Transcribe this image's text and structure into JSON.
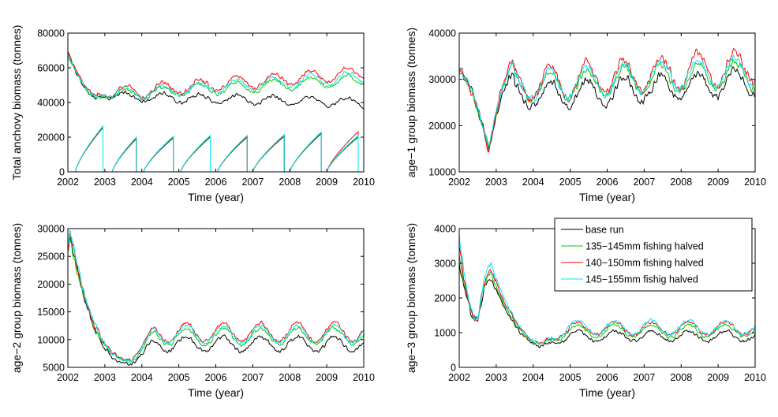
{
  "chart_data": [
    {
      "type": "line",
      "title": "",
      "xlabel": "Time (year)",
      "ylabel": "Total anchovy biomass (tonnes)",
      "xlim": [
        2002,
        2010
      ],
      "ylim": [
        0,
        80000
      ],
      "xticks": [
        "2002",
        "2003",
        "2004",
        "2005",
        "2006",
        "2007",
        "2008",
        "2009",
        "2010"
      ],
      "yticks": [
        "0",
        "20000",
        "40000",
        "60000",
        "80000"
      ],
      "series": [
        {
          "name": "base run",
          "color": "#000000",
          "start": 68000,
          "trough": 42000,
          "troughX": 2002.8,
          "trend": -500,
          "amp": 2600,
          "noise": 1500,
          "recovery": 0.6
        },
        {
          "name": "135−145mm fishing halved",
          "color": "#00cc00",
          "start": 68000,
          "trough": 42500,
          "troughX": 2002.8,
          "trend": 1300,
          "amp": 3200,
          "noise": 1500,
          "recovery": 0.6
        },
        {
          "name": "140−150mm fishing halved",
          "color": "#ff0000",
          "start": 69000,
          "trough": 43500,
          "troughX": 2002.8,
          "trend": 1750,
          "amp": 3600,
          "noise": 1700,
          "recovery": 0.6
        },
        {
          "name": "145−155mm fishig halved",
          "color": "#00e5ff",
          "start": 68000,
          "trough": 43000,
          "troughX": 2002.8,
          "trend": 1500,
          "amp": 3300,
          "noise": 1600,
          "recovery": 0.6
        }
      ],
      "sawtooth": {
        "start": [
          2002.2,
          2003.2,
          2004.05,
          2005.05,
          2006.05,
          2007.0,
          2008.0,
          2009.0
        ],
        "end": [
          2002.95,
          2003.85,
          2004.85,
          2005.85,
          2006.85,
          2007.85,
          2008.85,
          2009.85
        ],
        "peak": [
          26000,
          19500,
          20000,
          20500,
          20500,
          21000,
          22500,
          20500
        ],
        "last_peak_red": 23000
      }
    },
    {
      "type": "line",
      "title": "",
      "xlabel": "Time (year)",
      "ylabel": "age−1 group biomass (tonnes)",
      "xlim": [
        2002,
        2010
      ],
      "ylim": [
        10000,
        40000
      ],
      "xticks": [
        "2002",
        "2003",
        "2004",
        "2005",
        "2006",
        "2007",
        "2008",
        "2009",
        "2010"
      ],
      "yticks": [
        "10000",
        "20000",
        "30000",
        "40000"
      ],
      "series": [
        {
          "name": "base run",
          "color": "#000000",
          "start": 32500,
          "trough": 15000,
          "troughX": 2002.8,
          "trend": 0,
          "amp": 2800,
          "noise": 1300,
          "recovery": 0.5,
          "level": 26500,
          "growth": 500
        },
        {
          "name": "135−145mm fishing halved",
          "color": "#00cc00",
          "start": 32500,
          "trough": 15000,
          "troughX": 2002.8,
          "trend": 0,
          "amp": 3000,
          "noise": 1200,
          "recovery": 0.5,
          "level": 28500,
          "growth": 450
        },
        {
          "name": "140−150mm fishing halved",
          "color": "#ff0000",
          "start": 32500,
          "trough": 14500,
          "troughX": 2002.8,
          "trend": 0,
          "amp": 3600,
          "noise": 1400,
          "recovery": 0.5,
          "level": 29000,
          "growth": 650
        },
        {
          "name": "145−155mm fishig halved",
          "color": "#00e5ff",
          "start": 32500,
          "trough": 15200,
          "troughX": 2002.8,
          "trend": 0,
          "amp": 3300,
          "noise": 1300,
          "recovery": 0.5,
          "level": 28800,
          "growth": 550
        }
      ]
    },
    {
      "type": "line",
      "title": "",
      "xlabel": "Time (year)",
      "ylabel": "age−2 group biomass (tonnes)",
      "xlim": [
        2002,
        2010
      ],
      "ylim": [
        5000,
        30000
      ],
      "xticks": [
        "2002",
        "2003",
        "2004",
        "2005",
        "2006",
        "2007",
        "2008",
        "2009",
        "2010"
      ],
      "yticks": [
        "5000",
        "10000",
        "15000",
        "20000",
        "25000",
        "30000"
      ],
      "series": [
        {
          "name": "base run",
          "color": "#000000",
          "start": 27500,
          "trough": 5600,
          "troughX": 2003.75,
          "trend": 0,
          "amp": 1300,
          "noise": 500,
          "recovery": 0.6,
          "level": 9200
        },
        {
          "name": "135−145mm fishing halved",
          "color": "#00cc00",
          "start": 27000,
          "trough": 6200,
          "troughX": 2003.75,
          "trend": 0,
          "amp": 1500,
          "noise": 500,
          "recovery": 0.6,
          "level": 10600
        },
        {
          "name": "140−150mm fishing halved",
          "color": "#ff0000",
          "start": 28000,
          "trough": 6400,
          "troughX": 2003.75,
          "trend": 0,
          "amp": 1700,
          "noise": 550,
          "recovery": 0.6,
          "level": 11300
        },
        {
          "name": "145−155mm fishig halved",
          "color": "#00e5ff",
          "start": 28500,
          "trough": 6300,
          "troughX": 2003.75,
          "trend": 0,
          "amp": 1600,
          "noise": 550,
          "recovery": 0.6,
          "level": 11000
        }
      ]
    },
    {
      "type": "line",
      "title": "",
      "xlabel": "Time (year)",
      "ylabel": "age−3 group biomass (tonnes)",
      "xlim": [
        2002,
        2010
      ],
      "ylim": [
        0,
        4000
      ],
      "xticks": [
        "2002",
        "2003",
        "2004",
        "2005",
        "2006",
        "2007",
        "2008",
        "2009",
        "2010"
      ],
      "yticks": [
        "0",
        "1000",
        "2000",
        "3000",
        "4000"
      ],
      "legend": {
        "location": "upper-right",
        "entries": [
          "base run",
          "135−145mm fishing halved",
          "140−150mm fishing halved",
          "145−155mm fishig halved"
        ]
      },
      "series": [
        {
          "name": "base run",
          "color": "#000000",
          "start": 3000,
          "trough": 1350,
          "peakVal": 2600,
          "trough2": 620,
          "level": 900,
          "amp": 150,
          "noise": 70
        },
        {
          "name": "135−145mm fishing halved",
          "color": "#00cc00",
          "start": 3200,
          "trough": 1350,
          "peakVal": 2700,
          "trough2": 680,
          "level": 1050,
          "amp": 170,
          "noise": 70
        },
        {
          "name": "140−150mm fishing halved",
          "color": "#ff0000",
          "start": 3400,
          "trough": 1400,
          "peakVal": 2850,
          "trough2": 700,
          "level": 1120,
          "amp": 190,
          "noise": 75
        },
        {
          "name": "145−155mm fishig halved",
          "color": "#00e5ff",
          "start": 3800,
          "trough": 1350,
          "peakVal": 3000,
          "trough2": 690,
          "level": 1150,
          "amp": 200,
          "noise": 80
        }
      ]
    }
  ]
}
